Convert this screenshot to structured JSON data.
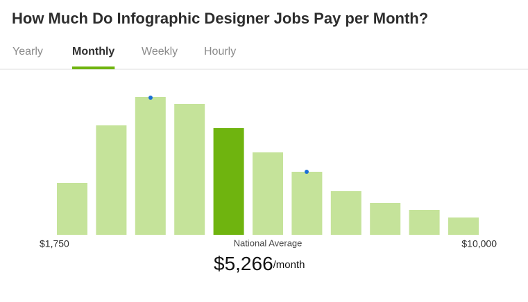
{
  "header": {
    "title": "How Much Do Infographic Designer Jobs Pay per Month?"
  },
  "tabs": {
    "items": [
      "Yearly",
      "Monthly",
      "Weekly",
      "Hourly"
    ],
    "active": 1
  },
  "chart_data": {
    "type": "bar",
    "values": [
      75,
      158,
      199,
      189,
      154,
      119,
      91,
      63,
      46,
      36,
      25
    ],
    "ylim": [
      0,
      200
    ],
    "color": "#c5e39a",
    "highlight_color": "#6fb40f",
    "highlight_index": 4,
    "min_label": "$1,750",
    "max_label": "$10,000"
  },
  "summary": {
    "caption": "National Average",
    "value": "$5,266",
    "unit": "/month"
  }
}
